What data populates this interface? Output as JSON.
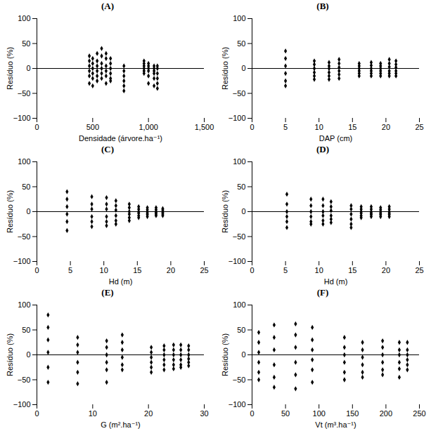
{
  "chart_data": [
    {
      "type": "scatter",
      "title": "(A)",
      "xlabel": "Densidade (árvore.ha⁻¹)",
      "ylabel": "Resíduo (%)",
      "color": "#000000",
      "marker": "diamond",
      "xlim": [
        0,
        1500
      ],
      "xticks": [
        0,
        500,
        1000,
        1500
      ],
      "ylim": [
        -100,
        100
      ],
      "yticks": [
        -100,
        -50,
        0,
        50,
        100
      ],
      "x": [
        470,
        470,
        470,
        470,
        470,
        470,
        500,
        500,
        500,
        500,
        500,
        500,
        540,
        540,
        540,
        540,
        540,
        540,
        580,
        580,
        580,
        580,
        580,
        580,
        620,
        620,
        620,
        620,
        620,
        620,
        660,
        660,
        660,
        660,
        660,
        660,
        780,
        780,
        780,
        780,
        780,
        780,
        960,
        960,
        960,
        960,
        960,
        960,
        1000,
        1000,
        1000,
        1000,
        1000,
        1000,
        1050,
        1050,
        1050,
        1050,
        1050,
        1050,
        1080,
        1080,
        1080,
        1080,
        1080,
        1080
      ],
      "values": [
        25,
        15,
        5,
        -5,
        -15,
        -30,
        20,
        10,
        0,
        -10,
        -20,
        -35,
        30,
        15,
        5,
        -5,
        -15,
        -25,
        40,
        25,
        10,
        0,
        -10,
        -20,
        30,
        20,
        5,
        -5,
        -15,
        -30,
        20,
        10,
        0,
        -10,
        -20,
        -25,
        5,
        -5,
        -15,
        -25,
        -35,
        -45,
        15,
        10,
        5,
        0,
        -5,
        -10,
        10,
        5,
        0,
        -5,
        -15,
        -30,
        5,
        0,
        -5,
        -10,
        -20,
        -35,
        5,
        0,
        -10,
        -20,
        -30,
        -40
      ]
    },
    {
      "type": "scatter",
      "title": "(B)",
      "xlabel": "DAP (cm)",
      "ylabel": "Resíduo (%)",
      "color": "#000000",
      "marker": "diamond",
      "xlim": [
        0,
        25
      ],
      "xticks": [
        0,
        5,
        10,
        15,
        20,
        25
      ],
      "ylim": [
        -100,
        100
      ],
      "yticks": [
        -100,
        -50,
        0,
        50,
        100
      ],
      "x": [
        5,
        5,
        5,
        5,
        5,
        5,
        9.3,
        9.3,
        9.3,
        9.3,
        9.3,
        9.3,
        11.5,
        11.5,
        11.5,
        11.5,
        11.5,
        11.5,
        13,
        13,
        13,
        13,
        13,
        13,
        16,
        16,
        16,
        16,
        16,
        16,
        17.8,
        17.8,
        17.8,
        17.8,
        17.8,
        17.8,
        19.2,
        19.2,
        19.2,
        19.2,
        19.2,
        19.2,
        20.5,
        20.5,
        20.5,
        20.5,
        20.5,
        20.5,
        21.5,
        21.5,
        21.5,
        21.5,
        21.5,
        21.5
      ],
      "values": [
        35,
        20,
        5,
        -10,
        -25,
        -35,
        15,
        8,
        0,
        -8,
        -15,
        -22,
        12,
        5,
        0,
        -8,
        -15,
        -22,
        18,
        10,
        2,
        -5,
        -12,
        -20,
        10,
        5,
        0,
        -5,
        -10,
        -15,
        12,
        6,
        0,
        -5,
        -10,
        -15,
        10,
        5,
        0,
        -5,
        -10,
        -15,
        18,
        10,
        3,
        -5,
        -10,
        -15,
        15,
        8,
        2,
        -5,
        -10,
        -15
      ]
    },
    {
      "type": "scatter",
      "title": "(C)",
      "xlabel": "Hd (m)",
      "ylabel": "Resíduo (%)",
      "color": "#000000",
      "marker": "diamond",
      "xlim": [
        0,
        25
      ],
      "xticks": [
        0,
        5,
        10,
        15,
        20,
        25
      ],
      "ylim": [
        -100,
        100
      ],
      "yticks": [
        -100,
        -50,
        0,
        50,
        100
      ],
      "x": [
        4.5,
        4.5,
        4.5,
        4.5,
        4.5,
        4.5,
        8.2,
        8.2,
        8.2,
        8.2,
        8.2,
        8.2,
        10.4,
        10.4,
        10.4,
        10.4,
        10.4,
        10.4,
        11.8,
        11.8,
        11.8,
        11.8,
        11.8,
        11.8,
        13.8,
        13.8,
        13.8,
        13.8,
        13.8,
        13.8,
        15.2,
        15.2,
        15.2,
        15.2,
        15.2,
        15.2,
        16.5,
        16.5,
        16.5,
        16.5,
        16.5,
        16.5,
        17.8,
        17.8,
        17.8,
        17.8,
        17.8,
        17.8,
        18.8,
        18.8,
        18.8,
        18.8,
        18.8,
        18.8
      ],
      "values": [
        40,
        25,
        10,
        -5,
        -20,
        -38,
        30,
        15,
        5,
        -10,
        -20,
        -30,
        28,
        15,
        5,
        -10,
        -20,
        -28,
        22,
        12,
        3,
        -8,
        -18,
        -25,
        15,
        8,
        0,
        -5,
        -12,
        -18,
        10,
        5,
        0,
        -3,
        -8,
        -12,
        8,
        4,
        0,
        -3,
        -6,
        -10,
        8,
        4,
        0,
        -2,
        -5,
        -8,
        6,
        3,
        0,
        -2,
        -5,
        -8
      ]
    },
    {
      "type": "scatter",
      "title": "(D)",
      "xlabel": "Hd (m)",
      "ylabel": "Resíduo (%)",
      "color": "#000000",
      "marker": "diamond",
      "xlim": [
        0,
        25
      ],
      "xticks": [
        0,
        5,
        10,
        15,
        20,
        25
      ],
      "ylim": [
        -100,
        100
      ],
      "yticks": [
        -100,
        -50,
        0,
        50,
        100
      ],
      "x": [
        5.2,
        5.2,
        5.2,
        5.2,
        5.2,
        5.2,
        8.8,
        8.8,
        8.8,
        8.8,
        8.8,
        8.8,
        10.6,
        10.6,
        10.6,
        10.6,
        10.6,
        10.6,
        11.8,
        11.8,
        11.8,
        11.8,
        11.8,
        11.8,
        14.8,
        14.8,
        14.8,
        14.8,
        14.8,
        14.8,
        16.3,
        16.3,
        16.3,
        16.3,
        16.3,
        16.3,
        17.8,
        17.8,
        17.8,
        17.8,
        17.8,
        17.8,
        19.2,
        19.2,
        19.2,
        19.2,
        19.2,
        19.2,
        20.5,
        20.5,
        20.5,
        20.5,
        20.5,
        20.5
      ],
      "values": [
        35,
        15,
        0,
        -10,
        -20,
        -32,
        25,
        12,
        0,
        -10,
        -20,
        -25,
        25,
        12,
        0,
        -8,
        -18,
        -25,
        20,
        10,
        2,
        -8,
        -15,
        -22,
        12,
        5,
        -5,
        -15,
        -25,
        -32,
        10,
        5,
        0,
        -3,
        -8,
        -12,
        10,
        5,
        0,
        -3,
        -6,
        -10,
        8,
        4,
        0,
        -3,
        -6,
        -10,
        10,
        5,
        0,
        -3,
        -6,
        -10
      ]
    },
    {
      "type": "scatter",
      "title": "(E)",
      "xlabel": "G (m².ha⁻¹)",
      "ylabel": "Resíduo (%)",
      "color": "#000000",
      "marker": "diamond",
      "xlim": [
        0,
        30
      ],
      "xticks": [
        0,
        10,
        20,
        30
      ],
      "ylim": [
        -100,
        100
      ],
      "yticks": [
        -100,
        -50,
        0,
        50,
        100
      ],
      "x": [
        2,
        2,
        2,
        2,
        2,
        2,
        7.3,
        7.3,
        7.3,
        7.3,
        7.3,
        7.3,
        12.5,
        12.5,
        12.5,
        12.5,
        12.5,
        12.5,
        15.3,
        15.3,
        15.3,
        15.3,
        15.3,
        15.3,
        20.5,
        20.5,
        20.5,
        20.5,
        20.5,
        20.5,
        22.8,
        22.8,
        22.8,
        22.8,
        22.8,
        22.8,
        24.5,
        24.5,
        24.5,
        24.5,
        24.5,
        24.5,
        25.8,
        25.8,
        25.8,
        25.8,
        25.8,
        25.8,
        27.2,
        27.2,
        27.2,
        27.2,
        27.2,
        27.2
      ],
      "values": [
        80,
        55,
        30,
        5,
        -25,
        -55,
        35,
        20,
        5,
        -15,
        -35,
        -58,
        28,
        15,
        0,
        -15,
        -30,
        -55,
        40,
        25,
        10,
        -5,
        -20,
        -30,
        15,
        5,
        -5,
        -15,
        -25,
        -35,
        18,
        10,
        0,
        -10,
        -20,
        -30,
        20,
        10,
        0,
        -10,
        -20,
        -28,
        20,
        10,
        0,
        -10,
        -20,
        -25,
        18,
        10,
        0,
        -8,
        -15,
        -22
      ]
    },
    {
      "type": "scatter",
      "title": "(F)",
      "xlabel": "Vt (m³.ha⁻¹)",
      "ylabel": "Resíduo (%)",
      "color": "#000000",
      "marker": "diamond",
      "xlim": [
        0,
        250
      ],
      "xticks": [
        0,
        50,
        100,
        150,
        200,
        250
      ],
      "ylim": [
        -100,
        100
      ],
      "yticks": [
        -100,
        -50,
        0,
        50,
        100
      ],
      "x": [
        10,
        10,
        10,
        10,
        10,
        10,
        33,
        33,
        33,
        33,
        33,
        33,
        65,
        65,
        65,
        65,
        65,
        65,
        90,
        90,
        90,
        90,
        90,
        90,
        138,
        138,
        138,
        138,
        138,
        138,
        165,
        165,
        165,
        165,
        165,
        165,
        195,
        195,
        195,
        195,
        195,
        195,
        220,
        220,
        220,
        220,
        220,
        220,
        232,
        232,
        232,
        232,
        232,
        232
      ],
      "values": [
        45,
        25,
        5,
        -15,
        -35,
        -50,
        60,
        35,
        10,
        -20,
        -45,
        -65,
        62,
        40,
        15,
        -15,
        -40,
        -68,
        55,
        30,
        10,
        -10,
        -30,
        -55,
        35,
        15,
        0,
        -15,
        -35,
        -50,
        25,
        10,
        -5,
        -20,
        -35,
        -45,
        28,
        15,
        0,
        -15,
        -30,
        -40,
        25,
        10,
        0,
        -15,
        -28,
        -45,
        25,
        10,
        0,
        -10,
        -20,
        -30
      ]
    }
  ]
}
